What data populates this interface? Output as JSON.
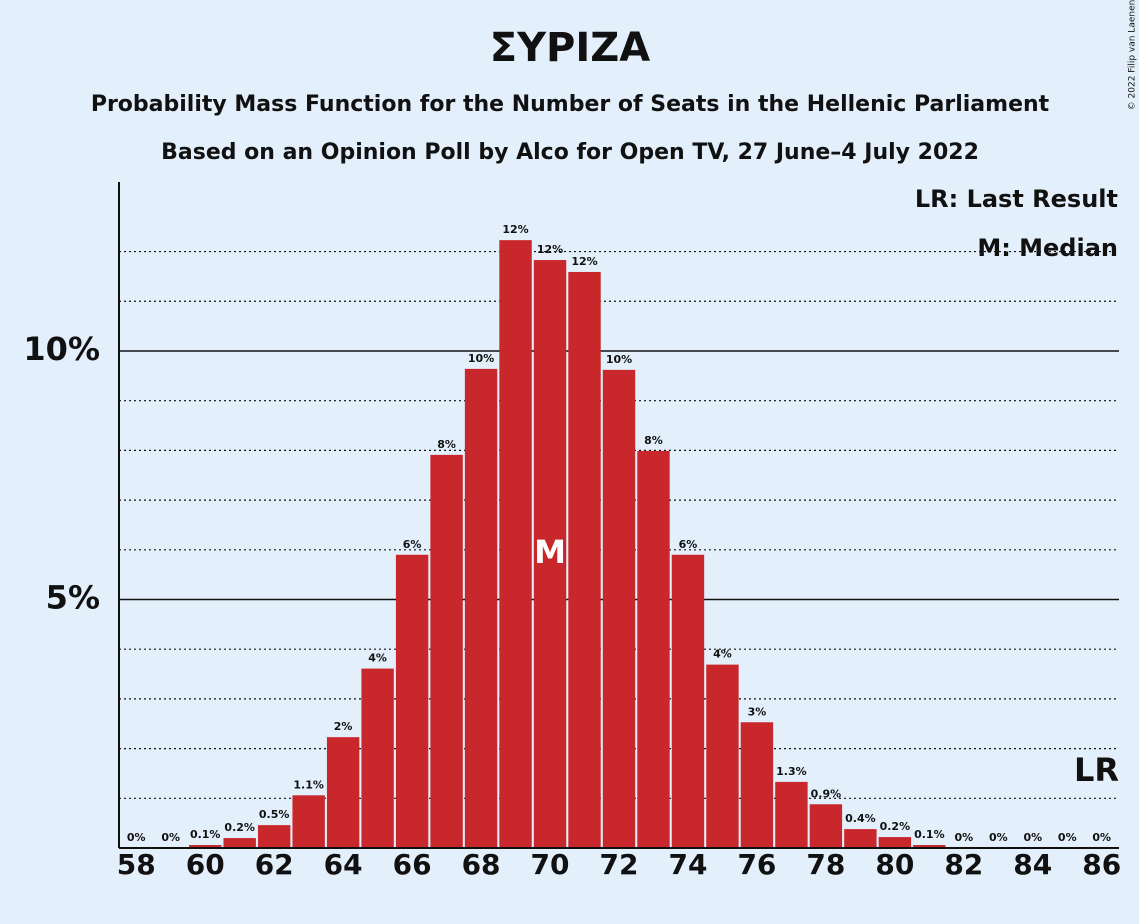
{
  "chart_data": {
    "type": "bar",
    "title": "ΣΥΡΙΖΑ",
    "subtitle": [
      "Probability Mass Function for the Number of Seats in the Hellenic Parliament",
      "Based on an Opinion Poll by Alco for Open TV, 27 June–4 July 2022"
    ],
    "copyright": "© 2022 Filip van Laenen",
    "x": [
      58,
      59,
      60,
      61,
      62,
      63,
      64,
      65,
      66,
      67,
      68,
      69,
      70,
      71,
      72,
      73,
      74,
      75,
      76,
      77,
      78,
      79,
      80,
      81,
      82,
      83,
      84,
      85,
      86
    ],
    "values": [
      0,
      0,
      0.06,
      0.2,
      0.46,
      1.06,
      2.23,
      3.61,
      5.9,
      7.91,
      9.64,
      12.23,
      11.83,
      11.59,
      9.62,
      7.99,
      5.9,
      3.69,
      2.53,
      1.33,
      0.88,
      0.38,
      0.22,
      0.06,
      0,
      0,
      0,
      0,
      0
    ],
    "value_labels": [
      "0%",
      "0%",
      "0.1%",
      "0.2%",
      "0.5%",
      "1.1%",
      "2%",
      "4%",
      "6%",
      "8%",
      "10%",
      "12%",
      "12%",
      "12%",
      "10%",
      "8%",
      "6%",
      "4%",
      "3%",
      "1.3%",
      "0.9%",
      "0.4%",
      "0.2%",
      "0.1%",
      "0%",
      "0%",
      "0%",
      "0%",
      "0%"
    ],
    "color": "#c8282c",
    "xlim": [
      57.5,
      86.5
    ],
    "xticks": [
      58,
      60,
      62,
      64,
      66,
      68,
      70,
      72,
      74,
      76,
      78,
      80,
      82,
      84,
      86
    ],
    "ylim": [
      0,
      13.4
    ],
    "yticks": [
      {
        "value": 5,
        "label": "5%"
      },
      {
        "value": 10,
        "label": "10%"
      }
    ],
    "yminorticks": [
      1,
      2,
      3,
      4,
      6,
      7,
      8,
      9,
      11,
      12
    ],
    "grid": true,
    "median": 70,
    "median_label": "M",
    "last_result": 86,
    "last_result_label": "LR",
    "legend": [
      "LR: Last Result",
      "M: Median"
    ]
  }
}
